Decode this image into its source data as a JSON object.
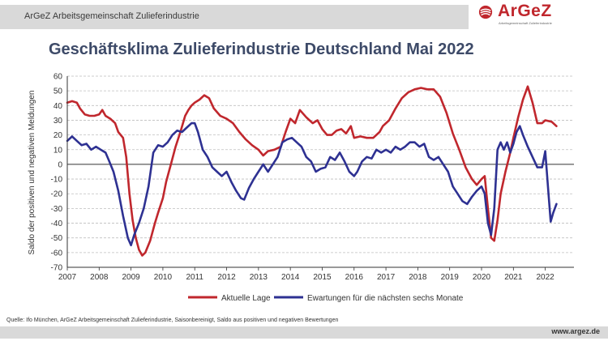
{
  "header": {
    "org_name": "ArGeZ Arbeitsgemeinschaft Zulieferindustrie",
    "logo_text": "ArGeZ",
    "logo_tagline": "Arbeitsgemeinschaft Zulieferindustrie"
  },
  "footer": {
    "source": "Quelle: Ifo München, ArGeZ Arbeitsgemeinschaft Zulieferindustrie, Saisonbereinigt, Saldo aus positiven und negativen Bewertungen",
    "url": "www.argez.de"
  },
  "colors": {
    "lage": "#c0272d",
    "erwartungen": "#2e3192",
    "title": "#3d4a68",
    "grid": "#bfbfbf",
    "bar": "#d9d9d9"
  },
  "chart_data": {
    "type": "line",
    "title": "Geschäftsklima Zulieferindustrie Deutschland Mai 2022",
    "ylabel": "Saldo der positiven und negativen Meldungen",
    "xlabel": "",
    "ylim": [
      -70,
      60
    ],
    "xlim": [
      2007,
      2022.9
    ],
    "yticks": [
      60,
      50,
      40,
      30,
      20,
      10,
      0,
      -10,
      -20,
      -30,
      -40,
      -50,
      -60,
      -70
    ],
    "xticks": [
      "2007",
      "2008",
      "2009",
      "2010",
      "2011",
      "2012",
      "2013",
      "2014",
      "2015",
      "2016",
      "2017",
      "2018",
      "2019",
      "2020",
      "2021",
      "2022"
    ],
    "grid": true,
    "legend_position": "bottom",
    "series": [
      {
        "name": "Aktuelle Lage",
        "color": "#c0272d",
        "points": [
          [
            2007.0,
            42
          ],
          [
            2007.15,
            43
          ],
          [
            2007.3,
            42
          ],
          [
            2007.4,
            38
          ],
          [
            2007.55,
            34
          ],
          [
            2007.7,
            33
          ],
          [
            2007.85,
            33
          ],
          [
            2008.0,
            34
          ],
          [
            2008.1,
            37
          ],
          [
            2008.2,
            33
          ],
          [
            2008.35,
            31
          ],
          [
            2008.5,
            28
          ],
          [
            2008.6,
            22
          ],
          [
            2008.75,
            18
          ],
          [
            2008.85,
            5
          ],
          [
            2008.95,
            -20
          ],
          [
            2009.05,
            -38
          ],
          [
            2009.15,
            -50
          ],
          [
            2009.25,
            -58
          ],
          [
            2009.35,
            -62
          ],
          [
            2009.45,
            -60
          ],
          [
            2009.6,
            -52
          ],
          [
            2009.75,
            -40
          ],
          [
            2009.85,
            -33
          ],
          [
            2010.0,
            -23
          ],
          [
            2010.1,
            -12
          ],
          [
            2010.25,
            0
          ],
          [
            2010.4,
            12
          ],
          [
            2010.55,
            22
          ],
          [
            2010.7,
            33
          ],
          [
            2010.8,
            37
          ],
          [
            2010.9,
            40
          ],
          [
            2011.0,
            42
          ],
          [
            2011.15,
            44
          ],
          [
            2011.3,
            47
          ],
          [
            2011.45,
            45
          ],
          [
            2011.6,
            38
          ],
          [
            2011.8,
            33
          ],
          [
            2012.0,
            31
          ],
          [
            2012.2,
            28
          ],
          [
            2012.4,
            22
          ],
          [
            2012.6,
            17
          ],
          [
            2012.8,
            13
          ],
          [
            2013.0,
            10
          ],
          [
            2013.15,
            6
          ],
          [
            2013.3,
            9
          ],
          [
            2013.5,
            10
          ],
          [
            2013.7,
            12
          ],
          [
            2013.85,
            22
          ],
          [
            2014.0,
            31
          ],
          [
            2014.15,
            28
          ],
          [
            2014.3,
            37
          ],
          [
            2014.5,
            32
          ],
          [
            2014.7,
            28
          ],
          [
            2014.85,
            30
          ],
          [
            2015.0,
            24
          ],
          [
            2015.15,
            20
          ],
          [
            2015.3,
            20
          ],
          [
            2015.45,
            23
          ],
          [
            2015.6,
            24
          ],
          [
            2015.75,
            21
          ],
          [
            2015.9,
            26
          ],
          [
            2016.0,
            18
          ],
          [
            2016.2,
            19
          ],
          [
            2016.4,
            18
          ],
          [
            2016.6,
            18
          ],
          [
            2016.8,
            22
          ],
          [
            2016.9,
            26
          ],
          [
            2017.1,
            30
          ],
          [
            2017.3,
            38
          ],
          [
            2017.5,
            45
          ],
          [
            2017.7,
            49
          ],
          [
            2017.9,
            51
          ],
          [
            2018.1,
            52
          ],
          [
            2018.3,
            51
          ],
          [
            2018.5,
            51
          ],
          [
            2018.7,
            46
          ],
          [
            2018.9,
            35
          ],
          [
            2019.1,
            21
          ],
          [
            2019.3,
            10
          ],
          [
            2019.5,
            -2
          ],
          [
            2019.7,
            -10
          ],
          [
            2019.85,
            -14
          ],
          [
            2020.0,
            -10
          ],
          [
            2020.1,
            -8
          ],
          [
            2020.2,
            -30
          ],
          [
            2020.3,
            -50
          ],
          [
            2020.4,
            -52
          ],
          [
            2020.5,
            -38
          ],
          [
            2020.6,
            -20
          ],
          [
            2020.75,
            -5
          ],
          [
            2020.9,
            8
          ],
          [
            2021.0,
            18
          ],
          [
            2021.15,
            32
          ],
          [
            2021.3,
            44
          ],
          [
            2021.45,
            53
          ],
          [
            2021.6,
            42
          ],
          [
            2021.75,
            28
          ],
          [
            2021.9,
            28
          ],
          [
            2022.0,
            30
          ],
          [
            2022.2,
            29
          ],
          [
            2022.35,
            26
          ]
        ]
      },
      {
        "name": "Ewartungen für die nächsten sechs Monate",
        "color": "#2e3192",
        "points": [
          [
            2007.0,
            16
          ],
          [
            2007.15,
            19
          ],
          [
            2007.3,
            16
          ],
          [
            2007.45,
            13
          ],
          [
            2007.6,
            14
          ],
          [
            2007.75,
            10
          ],
          [
            2007.9,
            12
          ],
          [
            2008.05,
            10
          ],
          [
            2008.2,
            8
          ],
          [
            2008.3,
            3
          ],
          [
            2008.45,
            -5
          ],
          [
            2008.6,
            -18
          ],
          [
            2008.75,
            -35
          ],
          [
            2008.9,
            -50
          ],
          [
            2009.0,
            -55
          ],
          [
            2009.1,
            -48
          ],
          [
            2009.25,
            -40
          ],
          [
            2009.4,
            -30
          ],
          [
            2009.55,
            -15
          ],
          [
            2009.7,
            8
          ],
          [
            2009.85,
            13
          ],
          [
            2010.0,
            12
          ],
          [
            2010.15,
            15
          ],
          [
            2010.3,
            20
          ],
          [
            2010.45,
            23
          ],
          [
            2010.6,
            22
          ],
          [
            2010.75,
            25
          ],
          [
            2010.9,
            28
          ],
          [
            2011.0,
            28
          ],
          [
            2011.1,
            22
          ],
          [
            2011.25,
            10
          ],
          [
            2011.4,
            5
          ],
          [
            2011.55,
            -2
          ],
          [
            2011.7,
            -5
          ],
          [
            2011.85,
            -8
          ],
          [
            2012.0,
            -5
          ],
          [
            2012.15,
            -12
          ],
          [
            2012.3,
            -18
          ],
          [
            2012.45,
            -23
          ],
          [
            2012.55,
            -24
          ],
          [
            2012.7,
            -16
          ],
          [
            2012.85,
            -10
          ],
          [
            2013.0,
            -5
          ],
          [
            2013.15,
            0
          ],
          [
            2013.3,
            -5
          ],
          [
            2013.45,
            0
          ],
          [
            2013.6,
            5
          ],
          [
            2013.75,
            15
          ],
          [
            2013.9,
            17
          ],
          [
            2014.05,
            18
          ],
          [
            2014.2,
            15
          ],
          [
            2014.35,
            12
          ],
          [
            2014.5,
            5
          ],
          [
            2014.65,
            2
          ],
          [
            2014.8,
            -5
          ],
          [
            2014.95,
            -3
          ],
          [
            2015.1,
            -2
          ],
          [
            2015.25,
            5
          ],
          [
            2015.4,
            3
          ],
          [
            2015.55,
            8
          ],
          [
            2015.7,
            2
          ],
          [
            2015.85,
            -5
          ],
          [
            2016.0,
            -8
          ],
          [
            2016.1,
            -5
          ],
          [
            2016.25,
            2
          ],
          [
            2016.4,
            5
          ],
          [
            2016.55,
            4
          ],
          [
            2016.7,
            10
          ],
          [
            2016.85,
            8
          ],
          [
            2017.0,
            10
          ],
          [
            2017.15,
            8
          ],
          [
            2017.3,
            12
          ],
          [
            2017.45,
            10
          ],
          [
            2017.6,
            12
          ],
          [
            2017.75,
            15
          ],
          [
            2017.9,
            15
          ],
          [
            2018.05,
            12
          ],
          [
            2018.2,
            14
          ],
          [
            2018.35,
            5
          ],
          [
            2018.5,
            3
          ],
          [
            2018.65,
            5
          ],
          [
            2018.8,
            0
          ],
          [
            2018.95,
            -5
          ],
          [
            2019.1,
            -15
          ],
          [
            2019.25,
            -20
          ],
          [
            2019.4,
            -25
          ],
          [
            2019.55,
            -27
          ],
          [
            2019.7,
            -22
          ],
          [
            2019.85,
            -18
          ],
          [
            2020.0,
            -15
          ],
          [
            2020.1,
            -20
          ],
          [
            2020.2,
            -40
          ],
          [
            2020.3,
            -48
          ],
          [
            2020.4,
            -30
          ],
          [
            2020.5,
            10
          ],
          [
            2020.6,
            15
          ],
          [
            2020.7,
            10
          ],
          [
            2020.8,
            15
          ],
          [
            2020.9,
            8
          ],
          [
            2021.0,
            14
          ],
          [
            2021.1,
            22
          ],
          [
            2021.2,
            26
          ],
          [
            2021.3,
            20
          ],
          [
            2021.45,
            12
          ],
          [
            2021.6,
            5
          ],
          [
            2021.75,
            -2
          ],
          [
            2021.9,
            -2
          ],
          [
            2022.0,
            9
          ],
          [
            2022.1,
            -20
          ],
          [
            2022.17,
            -39
          ],
          [
            2022.25,
            -33
          ],
          [
            2022.35,
            -27
          ]
        ]
      }
    ]
  }
}
